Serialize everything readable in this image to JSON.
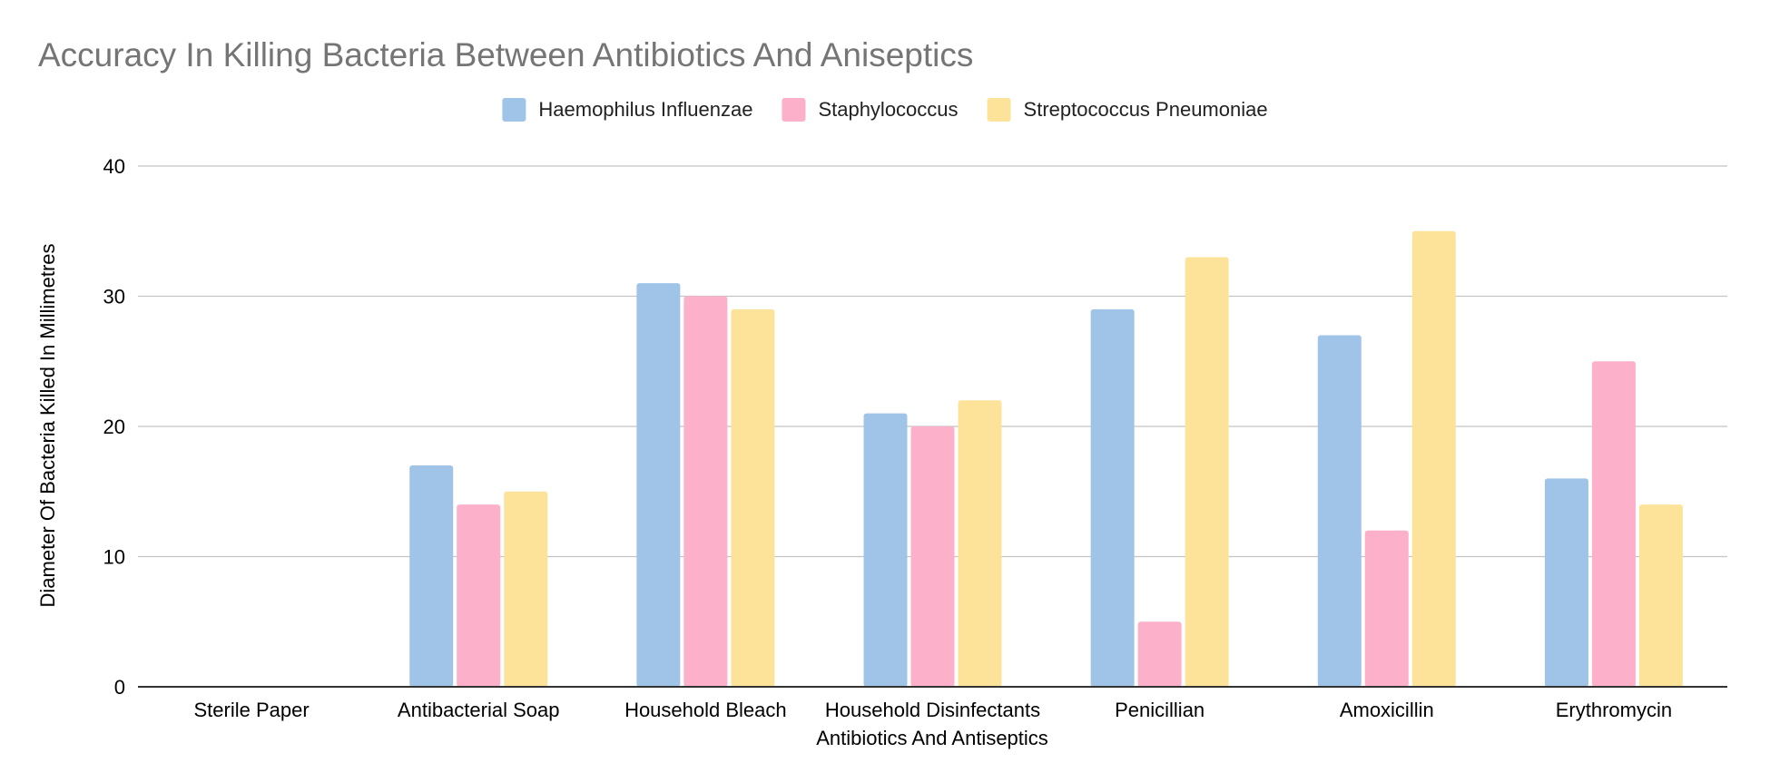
{
  "chart_data": {
    "type": "bar",
    "title": "Accuracy In Killing Bacteria Between Antibiotics And Aniseptics",
    "xlabel": "Antibiotics And Antiseptics",
    "ylabel": "Diameter Of Bacteria Killed In Millimetres",
    "ylim": [
      0,
      40
    ],
    "yticks": [
      "0",
      "10",
      "20",
      "30",
      "40"
    ],
    "grid": true,
    "legend_position": "top-center",
    "categories": [
      "Sterile Paper",
      "Antibacterial Soap",
      "Household Bleach",
      "Household Disinfectants",
      "Penicillian",
      "Amoxicillin",
      "Erythromycin"
    ],
    "series": [
      {
        "name": "Haemophilus Influenzae",
        "color": "#a0c4e8",
        "values": [
          0,
          17,
          31,
          21,
          29,
          27,
          16
        ]
      },
      {
        "name": "Staphylococcus",
        "color": "#fdb0c9",
        "values": [
          0,
          14,
          30,
          20,
          5,
          12,
          25
        ]
      },
      {
        "name": "Streptococcus Pneumoniae",
        "color": "#fde399",
        "values": [
          0,
          15,
          29,
          22,
          33,
          35,
          14
        ]
      }
    ]
  }
}
